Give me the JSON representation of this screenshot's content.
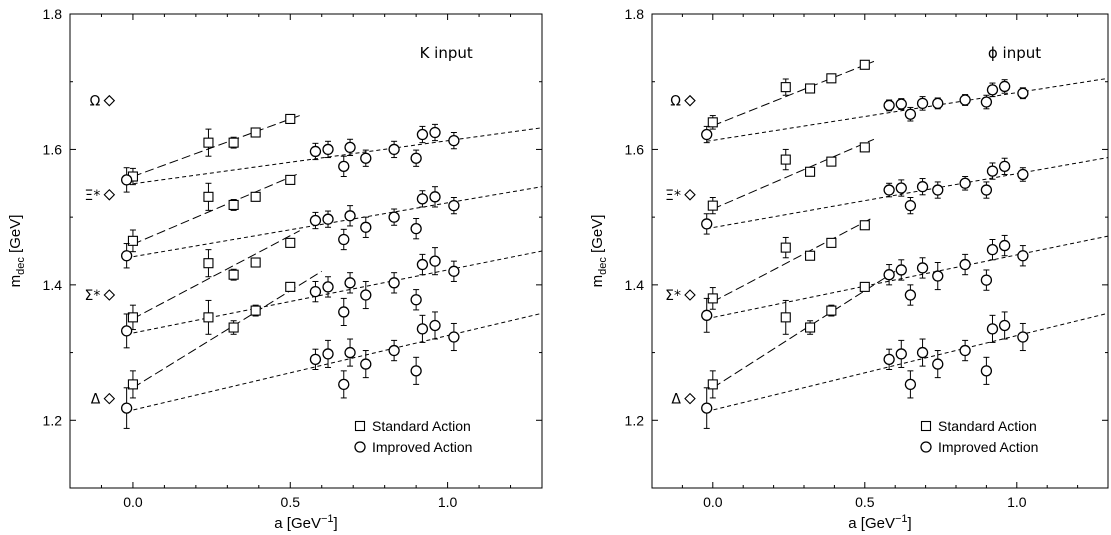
{
  "figure": {
    "background": "#ffffff",
    "ink": "#000000"
  },
  "chart_data": [
    {
      "type": "scatter",
      "annotation": "K input",
      "xlabel": {
        "base": "a [GeV",
        "sup": "−1",
        "close": "]"
      },
      "ylabel": {
        "base": "m",
        "sub": "dec",
        "rest": " [GeV]"
      },
      "xlim": [
        -0.2,
        1.3
      ],
      "ylim": [
        1.1,
        1.8
      ],
      "xticks": [
        0.0,
        0.5,
        1.0
      ],
      "xtick_labels": [
        "0.0",
        "0.5",
        "1.0"
      ],
      "yticks": [
        1.2,
        1.4,
        1.6,
        1.8
      ],
      "ytick_labels": [
        "1.2",
        "1.4",
        "1.6",
        "1.8"
      ],
      "grid": false,
      "legend_position": "bottom-right",
      "legend": [
        {
          "marker": "square",
          "label": "Standard Action"
        },
        {
          "marker": "circle",
          "label": "Improved Action"
        }
      ],
      "experiment": [
        {
          "label": "Ω",
          "value": 1.672
        },
        {
          "label": "Ξ*",
          "value": 1.533
        },
        {
          "label": "Σ*",
          "value": 1.385
        },
        {
          "label": "Δ",
          "value": 1.232
        }
      ],
      "standard": [
        {
          "points": [
            [
              0.24,
              1.61,
              0.02
            ],
            [
              0.32,
              1.61,
              0.008
            ],
            [
              0.39,
              1.625,
              0.006
            ],
            [
              0.5,
              1.645,
              0.006
            ]
          ],
          "fit": [
            [
              0.0,
              1.56
            ],
            [
              0.53,
              1.65
            ]
          ],
          "extrap": [
            0.0,
            1.56,
            0.012
          ]
        },
        {
          "points": [
            [
              0.24,
              1.53,
              0.02
            ],
            [
              0.32,
              1.518,
              0.008
            ],
            [
              0.39,
              1.53,
              0.006
            ],
            [
              0.5,
              1.555,
              0.006
            ]
          ],
          "fit": [
            [
              0.0,
              1.46
            ],
            [
              0.53,
              1.565
            ]
          ],
          "extrap": [
            0.0,
            1.465,
            0.016
          ]
        },
        {
          "points": [
            [
              0.24,
              1.432,
              0.02
            ],
            [
              0.32,
              1.415,
              0.008
            ],
            [
              0.39,
              1.433,
              0.006
            ],
            [
              0.5,
              1.462,
              0.006
            ]
          ],
          "fit": [
            [
              0.0,
              1.35
            ],
            [
              0.53,
              1.48
            ]
          ],
          "extrap": [
            0.0,
            1.352,
            0.018
          ]
        },
        {
          "points": [
            [
              0.24,
              1.352,
              0.025
            ],
            [
              0.32,
              1.337,
              0.01
            ],
            [
              0.39,
              1.362,
              0.008
            ],
            [
              0.5,
              1.397,
              0.006
            ]
          ],
          "fit": [
            [
              0.0,
              1.248
            ],
            [
              0.6,
              1.42
            ]
          ],
          "extrap": [
            0.0,
            1.253,
            0.02
          ]
        }
      ],
      "improved": [
        {
          "points": [
            [
              0.58,
              1.597,
              0.012
            ],
            [
              0.62,
              1.6,
              0.012
            ],
            [
              0.67,
              1.575,
              0.015
            ],
            [
              0.69,
              1.603,
              0.012
            ],
            [
              0.74,
              1.587,
              0.012
            ],
            [
              0.83,
              1.6,
              0.012
            ],
            [
              0.9,
              1.587,
              0.012
            ],
            [
              0.92,
              1.622,
              0.012
            ],
            [
              0.96,
              1.625,
              0.012
            ],
            [
              1.02,
              1.613,
              0.012
            ]
          ],
          "fit": [
            [
              -0.02,
              1.548
            ],
            [
              1.3,
              1.632
            ]
          ],
          "extrap": [
            -0.02,
            1.555,
            0.018
          ]
        },
        {
          "points": [
            [
              0.58,
              1.495,
              0.012
            ],
            [
              0.62,
              1.497,
              0.012
            ],
            [
              0.67,
              1.467,
              0.015
            ],
            [
              0.69,
              1.502,
              0.015
            ],
            [
              0.74,
              1.485,
              0.015
            ],
            [
              0.83,
              1.5,
              0.012
            ],
            [
              0.9,
              1.483,
              0.015
            ],
            [
              0.92,
              1.527,
              0.012
            ],
            [
              0.96,
              1.53,
              0.015
            ],
            [
              1.02,
              1.517,
              0.012
            ]
          ],
          "fit": [
            [
              -0.02,
              1.44
            ],
            [
              1.3,
              1.545
            ]
          ],
          "extrap": [
            -0.02,
            1.443,
            0.018
          ]
        },
        {
          "points": [
            [
              0.58,
              1.39,
              0.015
            ],
            [
              0.62,
              1.397,
              0.015
            ],
            [
              0.67,
              1.36,
              0.02
            ],
            [
              0.69,
              1.403,
              0.015
            ],
            [
              0.74,
              1.385,
              0.02
            ],
            [
              0.83,
              1.403,
              0.015
            ],
            [
              0.9,
              1.378,
              0.015
            ],
            [
              0.92,
              1.43,
              0.015
            ],
            [
              0.96,
              1.435,
              0.02
            ],
            [
              1.02,
              1.42,
              0.015
            ]
          ],
          "fit": [
            [
              -0.02,
              1.327
            ],
            [
              1.3,
              1.45
            ]
          ],
          "extrap": [
            -0.02,
            1.332,
            0.025
          ]
        },
        {
          "points": [
            [
              0.58,
              1.29,
              0.015
            ],
            [
              0.62,
              1.298,
              0.02
            ],
            [
              0.67,
              1.253,
              0.02
            ],
            [
              0.69,
              1.3,
              0.02
            ],
            [
              0.74,
              1.283,
              0.02
            ],
            [
              0.83,
              1.303,
              0.015
            ],
            [
              0.9,
              1.273,
              0.02
            ],
            [
              0.92,
              1.335,
              0.02
            ],
            [
              0.96,
              1.34,
              0.02
            ],
            [
              1.02,
              1.323,
              0.02
            ]
          ],
          "fit": [
            [
              -0.02,
              1.213
            ],
            [
              1.3,
              1.358
            ]
          ],
          "extrap": [
            -0.02,
            1.218,
            0.03
          ]
        }
      ]
    },
    {
      "type": "scatter",
      "annotation": "ϕ input",
      "xlabel": {
        "base": "a [GeV",
        "sup": "−1",
        "close": "]"
      },
      "ylabel": {
        "base": "m",
        "sub": "dec",
        "rest": " [GeV]"
      },
      "xlim": [
        -0.2,
        1.3
      ],
      "ylim": [
        1.1,
        1.8
      ],
      "xticks": [
        0.0,
        0.5,
        1.0
      ],
      "xtick_labels": [
        "0.0",
        "0.5",
        "1.0"
      ],
      "yticks": [
        1.2,
        1.4,
        1.6,
        1.8
      ],
      "ytick_labels": [
        "1.2",
        "1.4",
        "1.6",
        "1.8"
      ],
      "grid": false,
      "legend_position": "bottom-right",
      "legend": [
        {
          "marker": "square",
          "label": "Standard Action"
        },
        {
          "marker": "circle",
          "label": "Improved Action"
        }
      ],
      "experiment": [
        {
          "label": "Ω",
          "value": 1.672
        },
        {
          "label": "Ξ*",
          "value": 1.533
        },
        {
          "label": "Σ*",
          "value": 1.385
        },
        {
          "label": "Δ",
          "value": 1.232
        }
      ],
      "standard": [
        {
          "points": [
            [
              0.24,
              1.692,
              0.012
            ],
            [
              0.32,
              1.69,
              0.006
            ],
            [
              0.39,
              1.705,
              0.006
            ],
            [
              0.5,
              1.725,
              0.006
            ]
          ],
          "fit": [
            [
              0.0,
              1.635
            ],
            [
              0.53,
              1.73
            ]
          ],
          "extrap": [
            0.0,
            1.64,
            0.01
          ]
        },
        {
          "points": [
            [
              0.24,
              1.585,
              0.015
            ],
            [
              0.32,
              1.567,
              0.006
            ],
            [
              0.39,
              1.582,
              0.006
            ],
            [
              0.5,
              1.603,
              0.006
            ]
          ],
          "fit": [
            [
              0.0,
              1.512
            ],
            [
              0.53,
              1.615
            ]
          ],
          "extrap": [
            0.0,
            1.517,
            0.012
          ]
        },
        {
          "points": [
            [
              0.24,
              1.455,
              0.015
            ],
            [
              0.32,
              1.443,
              0.006
            ],
            [
              0.39,
              1.462,
              0.006
            ],
            [
              0.5,
              1.488,
              0.006
            ]
          ],
          "fit": [
            [
              0.0,
              1.375
            ],
            [
              0.53,
              1.5
            ]
          ],
          "extrap": [
            0.0,
            1.38,
            0.016
          ]
        },
        {
          "points": [
            [
              0.24,
              1.352,
              0.025
            ],
            [
              0.32,
              1.337,
              0.01
            ],
            [
              0.39,
              1.362,
              0.008
            ],
            [
              0.5,
              1.397,
              0.006
            ]
          ],
          "fit": [
            [
              0.0,
              1.248
            ],
            [
              0.6,
              1.42
            ]
          ],
          "extrap": [
            0.0,
            1.253,
            0.02
          ]
        }
      ],
      "improved": [
        {
          "points": [
            [
              0.58,
              1.665,
              0.008
            ],
            [
              0.62,
              1.667,
              0.008
            ],
            [
              0.65,
              1.652,
              0.01
            ],
            [
              0.69,
              1.668,
              0.01
            ],
            [
              0.74,
              1.668,
              0.008
            ],
            [
              0.83,
              1.673,
              0.008
            ],
            [
              0.9,
              1.67,
              0.01
            ],
            [
              0.92,
              1.688,
              0.01
            ],
            [
              0.96,
              1.693,
              0.01
            ],
            [
              1.02,
              1.683,
              0.008
            ]
          ],
          "fit": [
            [
              -0.02,
              1.612
            ],
            [
              1.3,
              1.705
            ]
          ],
          "extrap": [
            -0.02,
            1.622,
            0.012
          ]
        },
        {
          "points": [
            [
              0.58,
              1.54,
              0.01
            ],
            [
              0.62,
              1.543,
              0.012
            ],
            [
              0.65,
              1.517,
              0.012
            ],
            [
              0.69,
              1.545,
              0.012
            ],
            [
              0.74,
              1.54,
              0.012
            ],
            [
              0.83,
              1.55,
              0.01
            ],
            [
              0.9,
              1.54,
              0.012
            ],
            [
              0.92,
              1.568,
              0.012
            ],
            [
              0.96,
              1.575,
              0.012
            ],
            [
              1.02,
              1.563,
              0.01
            ]
          ],
          "fit": [
            [
              -0.02,
              1.483
            ],
            [
              1.3,
              1.588
            ]
          ],
          "extrap": [
            -0.02,
            1.49,
            0.015
          ]
        },
        {
          "points": [
            [
              0.58,
              1.415,
              0.015
            ],
            [
              0.62,
              1.422,
              0.015
            ],
            [
              0.65,
              1.385,
              0.015
            ],
            [
              0.69,
              1.425,
              0.015
            ],
            [
              0.74,
              1.413,
              0.02
            ],
            [
              0.83,
              1.43,
              0.015
            ],
            [
              0.9,
              1.407,
              0.015
            ],
            [
              0.92,
              1.452,
              0.015
            ],
            [
              0.96,
              1.458,
              0.015
            ],
            [
              1.02,
              1.443,
              0.015
            ]
          ],
          "fit": [
            [
              -0.02,
              1.35
            ],
            [
              1.3,
              1.472
            ]
          ],
          "extrap": [
            -0.02,
            1.355,
            0.025
          ]
        },
        {
          "points": [
            [
              0.58,
              1.29,
              0.015
            ],
            [
              0.62,
              1.298,
              0.02
            ],
            [
              0.65,
              1.253,
              0.02
            ],
            [
              0.69,
              1.3,
              0.02
            ],
            [
              0.74,
              1.283,
              0.02
            ],
            [
              0.83,
              1.303,
              0.015
            ],
            [
              0.9,
              1.273,
              0.02
            ],
            [
              0.92,
              1.335,
              0.02
            ],
            [
              0.96,
              1.34,
              0.02
            ],
            [
              1.02,
              1.323,
              0.02
            ]
          ],
          "fit": [
            [
              -0.02,
              1.213
            ],
            [
              1.3,
              1.358
            ]
          ],
          "extrap": [
            -0.02,
            1.218,
            0.03
          ]
        }
      ]
    }
  ]
}
